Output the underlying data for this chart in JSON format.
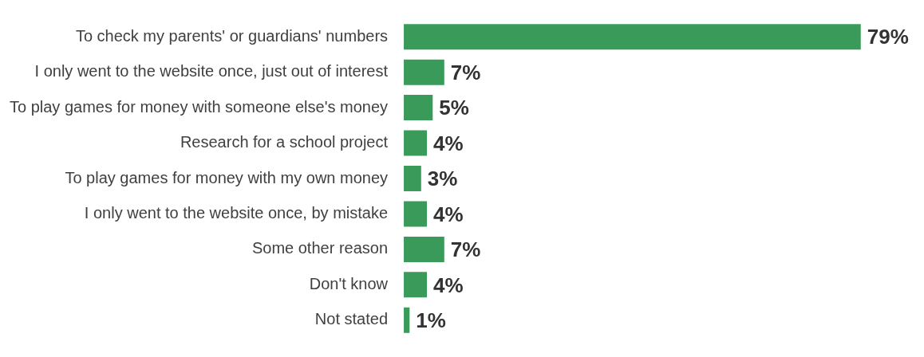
{
  "chart_data": {
    "type": "bar",
    "orientation": "horizontal",
    "categories": [
      "To check my parents' or guardians' numbers",
      "I only went to the website once, just out of interest",
      "To play games for money with someone else's money",
      "Research for a school project",
      "To play games for money with my own money",
      "I only went to the website once, by mistake",
      "Some other reason",
      "Don't know",
      "Not stated"
    ],
    "values": [
      79,
      7,
      5,
      4,
      3,
      4,
      7,
      4,
      1
    ],
    "value_labels": [
      "79%",
      "7%",
      "5%",
      "4%",
      "3%",
      "4%",
      "7%",
      "4%",
      "1%"
    ],
    "color": "#3a9a5a",
    "grid": false,
    "legend": false,
    "tick_labels": "y"
  }
}
